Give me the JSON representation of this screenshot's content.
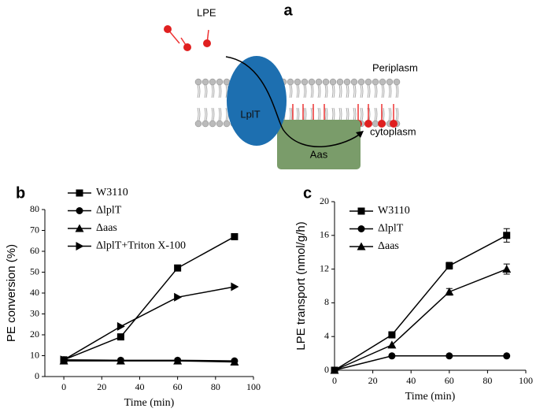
{
  "diagram": {
    "panel_label": "a",
    "lpe": "LPE",
    "periplasm": "Periplasm",
    "lplt": "LplT",
    "aas": "Aas",
    "cytoplasm": "cytoplasm"
  },
  "chart_data": [
    {
      "type": "line",
      "panel_label": "b",
      "x_label": "Time (min)",
      "y_label": "PE conversion (%)",
      "x": [
        0,
        30,
        60,
        90
      ],
      "xlim": [
        -10,
        100
      ],
      "xticks": [
        0,
        20,
        40,
        60,
        80,
        100
      ],
      "ylim": [
        0,
        80
      ],
      "yticks": [
        0,
        10,
        20,
        30,
        40,
        50,
        60,
        70,
        80
      ],
      "series": [
        {
          "name": "W3110",
          "color": "#000000",
          "marker": "square",
          "values": [
            8,
            19,
            52,
            67
          ]
        },
        {
          "name": "ΔlplT",
          "color": "#000000",
          "marker": "circle",
          "values": [
            8,
            7.8,
            7.8,
            7.5
          ]
        },
        {
          "name": "Δaas",
          "color": "#000000",
          "marker": "triangle-up",
          "values": [
            7.5,
            7.5,
            7.5,
            7
          ]
        },
        {
          "name": "ΔlplT+Triton X-100",
          "color": "#000000",
          "marker": "triangle-right",
          "values": [
            8,
            24,
            38,
            43
          ]
        }
      ]
    },
    {
      "type": "line",
      "panel_label": "c",
      "x_label": "Time (min)",
      "y_label": "LPE transport (nmol/g/h)",
      "x": [
        0,
        30,
        60,
        90
      ],
      "xlim": [
        0,
        100
      ],
      "xticks": [
        0,
        20,
        40,
        60,
        80,
        100
      ],
      "ylim": [
        0,
        20
      ],
      "yticks": [
        0,
        4,
        8,
        12,
        16,
        20
      ],
      "series": [
        {
          "name": "W3110",
          "color": "#000000",
          "marker": "square",
          "values": [
            0,
            4.2,
            12.4,
            16
          ],
          "errors": [
            0,
            0,
            0.4,
            0.8
          ]
        },
        {
          "name": "ΔlplT",
          "color": "#000000",
          "marker": "circle",
          "values": [
            0,
            1.7,
            1.7,
            1.7
          ],
          "errors": [
            0,
            0,
            0,
            0
          ]
        },
        {
          "name": "Δaas",
          "color": "#000000",
          "marker": "triangle-up",
          "values": [
            0,
            3,
            9.3,
            12
          ],
          "errors": [
            0,
            0,
            0.4,
            0.6
          ]
        }
      ]
    }
  ]
}
